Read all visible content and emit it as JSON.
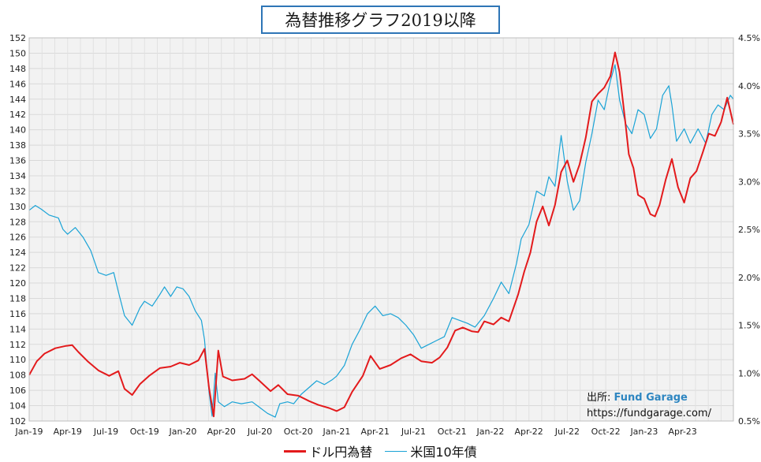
{
  "source": {
    "label": "出所: ",
    "brand": "Fund Garage",
    "url": "https://fundgarage.com/"
  },
  "chart_data": {
    "type": "line",
    "title": "為替推移グラフ2019以降",
    "x_labels": [
      "Jan-19",
      "Apr-19",
      "Jul-19",
      "Oct-19",
      "Jan-20",
      "Apr-20",
      "Jul-20",
      "Oct-20",
      "Jan-21",
      "Apr-21",
      "Jul-21",
      "Oct-21",
      "Jan-22",
      "Apr-22",
      "Jul-22",
      "Oct-22",
      "Jan-23",
      "Apr-23"
    ],
    "x_range": [
      2019.0,
      2023.58
    ],
    "y_left": {
      "min": 102,
      "max": 152,
      "step": 2
    },
    "y_right": {
      "min": 0.5,
      "max": 4.5,
      "step": 0.5,
      "tick_labels": [
        "0.5%",
        "1.0%",
        "1.5%",
        "2.0%",
        "2.5%",
        "3.0%",
        "3.5%",
        "4.0%",
        "4.5%"
      ]
    },
    "grid": true,
    "legend_position": "bottom",
    "colors": {
      "usdjpy": "#e31a1c",
      "us10y": "#1aa3d6"
    },
    "series": [
      {
        "name": "ドル円為替",
        "axis": "left",
        "points": [
          [
            2019.0,
            108.0
          ],
          [
            2019.05,
            109.8
          ],
          [
            2019.1,
            110.8
          ],
          [
            2019.17,
            111.5
          ],
          [
            2019.24,
            111.8
          ],
          [
            2019.28,
            111.9
          ],
          [
            2019.32,
            111.0
          ],
          [
            2019.38,
            109.8
          ],
          [
            2019.45,
            108.6
          ],
          [
            2019.52,
            107.9
          ],
          [
            2019.58,
            108.5
          ],
          [
            2019.62,
            106.2
          ],
          [
            2019.67,
            105.4
          ],
          [
            2019.72,
            106.8
          ],
          [
            2019.78,
            107.9
          ],
          [
            2019.85,
            108.9
          ],
          [
            2019.92,
            109.1
          ],
          [
            2019.98,
            109.6
          ],
          [
            2020.04,
            109.3
          ],
          [
            2020.1,
            109.9
          ],
          [
            2020.14,
            111.4
          ],
          [
            2020.17,
            106.3
          ],
          [
            2020.2,
            102.6
          ],
          [
            2020.23,
            111.2
          ],
          [
            2020.26,
            107.8
          ],
          [
            2020.32,
            107.3
          ],
          [
            2020.4,
            107.5
          ],
          [
            2020.45,
            108.1
          ],
          [
            2020.5,
            107.2
          ],
          [
            2020.57,
            105.9
          ],
          [
            2020.62,
            106.7
          ],
          [
            2020.68,
            105.5
          ],
          [
            2020.75,
            105.3
          ],
          [
            2020.82,
            104.6
          ],
          [
            2020.88,
            104.1
          ],
          [
            2020.95,
            103.7
          ],
          [
            2021.0,
            103.3
          ],
          [
            2021.05,
            103.8
          ],
          [
            2021.1,
            105.8
          ],
          [
            2021.17,
            107.9
          ],
          [
            2021.22,
            110.5
          ],
          [
            2021.28,
            108.8
          ],
          [
            2021.35,
            109.3
          ],
          [
            2021.42,
            110.2
          ],
          [
            2021.48,
            110.7
          ],
          [
            2021.55,
            109.8
          ],
          [
            2021.62,
            109.6
          ],
          [
            2021.67,
            110.3
          ],
          [
            2021.72,
            111.6
          ],
          [
            2021.77,
            113.8
          ],
          [
            2021.82,
            114.2
          ],
          [
            2021.88,
            113.7
          ],
          [
            2021.92,
            113.6
          ],
          [
            2021.96,
            115.0
          ],
          [
            2022.02,
            114.6
          ],
          [
            2022.07,
            115.5
          ],
          [
            2022.12,
            115.0
          ],
          [
            2022.18,
            118.5
          ],
          [
            2022.22,
            121.5
          ],
          [
            2022.26,
            124.0
          ],
          [
            2022.3,
            128.0
          ],
          [
            2022.34,
            130.0
          ],
          [
            2022.38,
            127.5
          ],
          [
            2022.42,
            130.2
          ],
          [
            2022.46,
            134.5
          ],
          [
            2022.5,
            136.0
          ],
          [
            2022.54,
            133.2
          ],
          [
            2022.58,
            135.5
          ],
          [
            2022.62,
            139.0
          ],
          [
            2022.66,
            143.7
          ],
          [
            2022.7,
            144.7
          ],
          [
            2022.74,
            145.5
          ],
          [
            2022.78,
            147.0
          ],
          [
            2022.81,
            150.1
          ],
          [
            2022.84,
            147.5
          ],
          [
            2022.88,
            140.5
          ],
          [
            2022.9,
            136.8
          ],
          [
            2022.93,
            135.0
          ],
          [
            2022.96,
            131.5
          ],
          [
            2023.0,
            131.0
          ],
          [
            2023.04,
            129.0
          ],
          [
            2023.07,
            128.7
          ],
          [
            2023.1,
            130.2
          ],
          [
            2023.14,
            133.5
          ],
          [
            2023.18,
            136.2
          ],
          [
            2023.22,
            132.5
          ],
          [
            2023.26,
            130.5
          ],
          [
            2023.3,
            133.7
          ],
          [
            2023.34,
            134.6
          ],
          [
            2023.38,
            137.0
          ],
          [
            2023.42,
            139.5
          ],
          [
            2023.46,
            139.2
          ],
          [
            2023.5,
            141.0
          ],
          [
            2023.54,
            144.2
          ],
          [
            2023.58,
            140.7
          ]
        ]
      },
      {
        "name": "米国10年債",
        "axis": "right",
        "points": [
          [
            2019.0,
            2.7
          ],
          [
            2019.04,
            2.75
          ],
          [
            2019.08,
            2.71
          ],
          [
            2019.13,
            2.65
          ],
          [
            2019.19,
            2.62
          ],
          [
            2019.22,
            2.5
          ],
          [
            2019.25,
            2.45
          ],
          [
            2019.3,
            2.52
          ],
          [
            2019.35,
            2.42
          ],
          [
            2019.4,
            2.28
          ],
          [
            2019.45,
            2.05
          ],
          [
            2019.5,
            2.02
          ],
          [
            2019.55,
            2.05
          ],
          [
            2019.58,
            1.85
          ],
          [
            2019.62,
            1.6
          ],
          [
            2019.67,
            1.5
          ],
          [
            2019.72,
            1.68
          ],
          [
            2019.75,
            1.75
          ],
          [
            2019.8,
            1.7
          ],
          [
            2019.85,
            1.82
          ],
          [
            2019.88,
            1.9
          ],
          [
            2019.92,
            1.8
          ],
          [
            2019.96,
            1.9
          ],
          [
            2020.0,
            1.88
          ],
          [
            2020.04,
            1.8
          ],
          [
            2020.08,
            1.65
          ],
          [
            2020.12,
            1.55
          ],
          [
            2020.14,
            1.35
          ],
          [
            2020.17,
            0.8
          ],
          [
            2020.19,
            0.55
          ],
          [
            2020.21,
            1.0
          ],
          [
            2020.23,
            0.7
          ],
          [
            2020.27,
            0.65
          ],
          [
            2020.32,
            0.7
          ],
          [
            2020.38,
            0.68
          ],
          [
            2020.45,
            0.7
          ],
          [
            2020.5,
            0.64
          ],
          [
            2020.55,
            0.58
          ],
          [
            2020.6,
            0.54
          ],
          [
            2020.63,
            0.68
          ],
          [
            2020.68,
            0.7
          ],
          [
            2020.72,
            0.68
          ],
          [
            2020.77,
            0.78
          ],
          [
            2020.82,
            0.85
          ],
          [
            2020.87,
            0.92
          ],
          [
            2020.92,
            0.88
          ],
          [
            2020.97,
            0.93
          ],
          [
            2021.0,
            0.97
          ],
          [
            2021.05,
            1.08
          ],
          [
            2021.1,
            1.3
          ],
          [
            2021.15,
            1.45
          ],
          [
            2021.2,
            1.62
          ],
          [
            2021.25,
            1.7
          ],
          [
            2021.3,
            1.6
          ],
          [
            2021.35,
            1.62
          ],
          [
            2021.4,
            1.58
          ],
          [
            2021.45,
            1.5
          ],
          [
            2021.5,
            1.4
          ],
          [
            2021.55,
            1.26
          ],
          [
            2021.6,
            1.3
          ],
          [
            2021.65,
            1.34
          ],
          [
            2021.7,
            1.38
          ],
          [
            2021.75,
            1.58
          ],
          [
            2021.8,
            1.55
          ],
          [
            2021.85,
            1.52
          ],
          [
            2021.9,
            1.48
          ],
          [
            2021.96,
            1.6
          ],
          [
            2022.02,
            1.78
          ],
          [
            2022.07,
            1.95
          ],
          [
            2022.12,
            1.83
          ],
          [
            2022.17,
            2.15
          ],
          [
            2022.2,
            2.4
          ],
          [
            2022.25,
            2.55
          ],
          [
            2022.3,
            2.9
          ],
          [
            2022.35,
            2.85
          ],
          [
            2022.38,
            3.05
          ],
          [
            2022.42,
            2.95
          ],
          [
            2022.46,
            3.48
          ],
          [
            2022.5,
            3.0
          ],
          [
            2022.54,
            2.7
          ],
          [
            2022.58,
            2.8
          ],
          [
            2022.62,
            3.2
          ],
          [
            2022.66,
            3.5
          ],
          [
            2022.7,
            3.85
          ],
          [
            2022.74,
            3.75
          ],
          [
            2022.78,
            4.05
          ],
          [
            2022.81,
            4.22
          ],
          [
            2022.84,
            3.85
          ],
          [
            2022.88,
            3.6
          ],
          [
            2022.92,
            3.5
          ],
          [
            2022.96,
            3.75
          ],
          [
            2023.0,
            3.7
          ],
          [
            2023.04,
            3.45
          ],
          [
            2023.08,
            3.55
          ],
          [
            2023.12,
            3.9
          ],
          [
            2023.16,
            4.0
          ],
          [
            2023.18,
            3.8
          ],
          [
            2023.21,
            3.42
          ],
          [
            2023.26,
            3.55
          ],
          [
            2023.3,
            3.4
          ],
          [
            2023.35,
            3.55
          ],
          [
            2023.4,
            3.4
          ],
          [
            2023.44,
            3.7
          ],
          [
            2023.48,
            3.8
          ],
          [
            2023.52,
            3.75
          ],
          [
            2023.56,
            3.9
          ],
          [
            2023.58,
            3.86
          ]
        ]
      }
    ]
  }
}
